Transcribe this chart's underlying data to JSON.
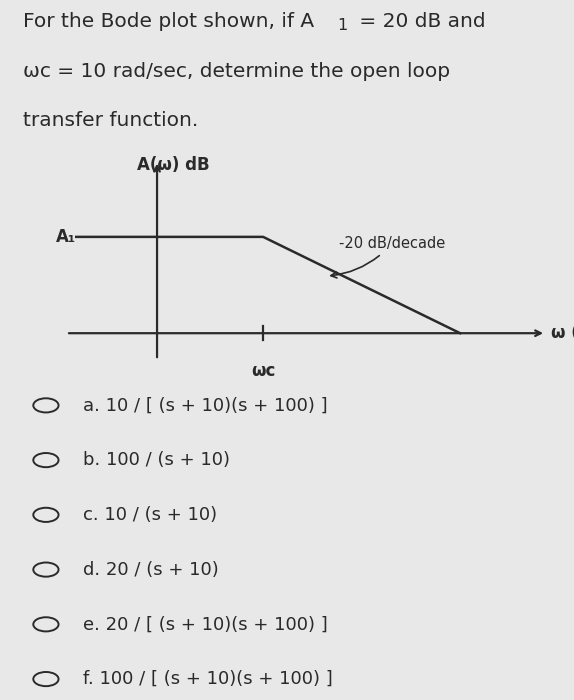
{
  "bg_color": "#e8e8e8",
  "line1": "For the Bode plot shown, if A",
  "line1b": "1",
  "line1c": " = 20 dB and",
  "line2": "ωᴄ = 10 rad/sec, determine the open loop",
  "line3": "transfer function.",
  "ylabel": "A(ω) dB",
  "xlabel": "ω (rad/sec)",
  "wc_label": "ωc",
  "A1_label": "A₁",
  "slope_label": "-20 dB/decade",
  "options": [
    "a. 10 / [ (s + 10)(s + 100) ]",
    "b. 100 / (s + 10)",
    "c. 10 / (s + 10)",
    "d. 20 / (s + 10)",
    "e. 20 / [ (s + 10)(s + 100) ]",
    "f. 100 / [ (s + 10)(s + 100) ]"
  ],
  "plot_color": "#2a2a2a",
  "text_color": "#2a2a2a",
  "font_size_title": 14.5,
  "font_size_options": 13,
  "font_size_labels": 11,
  "font_size_axis": 12
}
